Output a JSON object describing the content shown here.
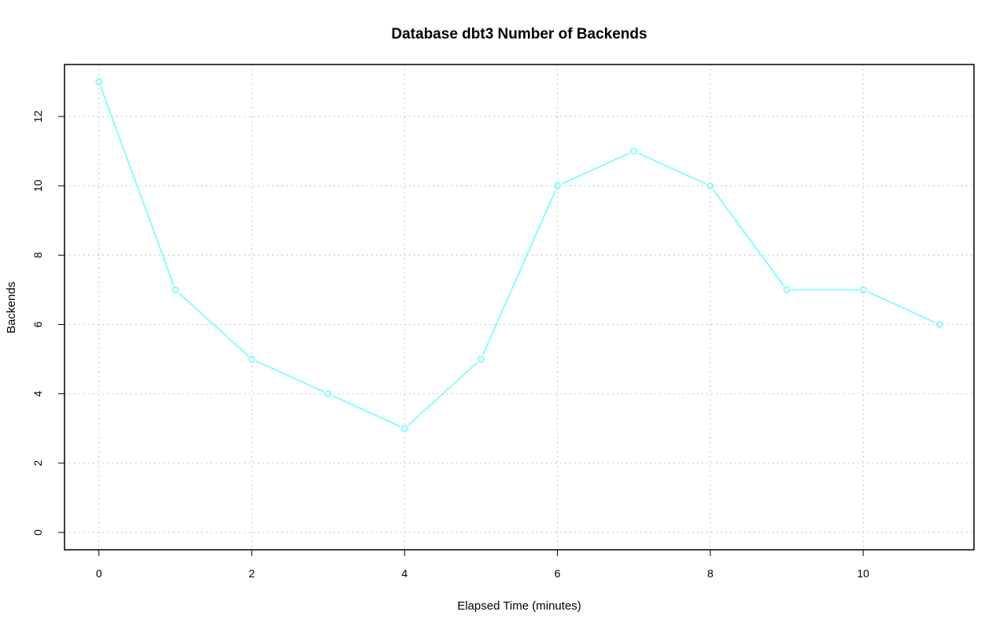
{
  "chart_data": {
    "type": "line",
    "title": "Database dbt3 Number of Backends",
    "xlabel": "Elapsed Time (minutes)",
    "ylabel": "Backends",
    "x": [
      0,
      1,
      2,
      3,
      4,
      5,
      6,
      7,
      8,
      9,
      10,
      11
    ],
    "series": [
      {
        "values": [
          13,
          7,
          5,
          4,
          3,
          5,
          10,
          11,
          10,
          7,
          7,
          6
        ],
        "color": "#66FFFF",
        "marker": "open-circle"
      }
    ],
    "xlim": [
      -0.45,
      11.45
    ],
    "ylim": [
      -0.5,
      13.5
    ],
    "xticks": [
      0,
      2,
      4,
      6,
      8,
      10
    ],
    "yticks": [
      0,
      2,
      4,
      6,
      8,
      10,
      12
    ],
    "grid": true,
    "grid_color": "#BEBEBE",
    "legend": "none"
  }
}
